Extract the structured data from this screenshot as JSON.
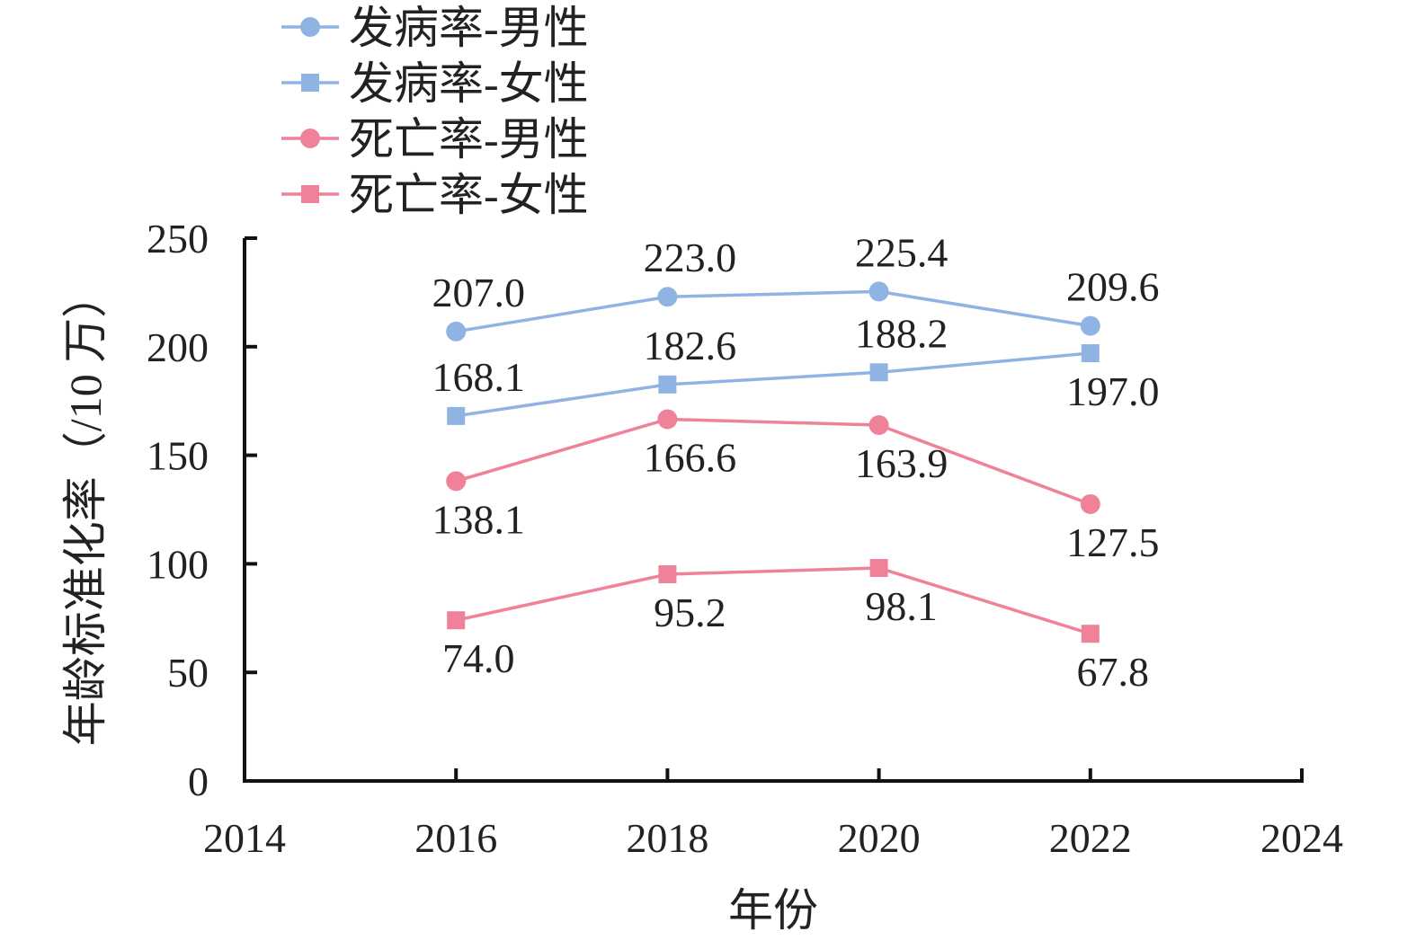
{
  "chart_data": {
    "type": "line",
    "xlabel": "年份",
    "ylabel": "年龄标准化率（/10 万）",
    "xlim": [
      2014,
      2024
    ],
    "ylim": [
      0,
      250
    ],
    "xticks": [
      "2014",
      "2016",
      "2018",
      "2020",
      "2022",
      "2024"
    ],
    "yticks": [
      "0",
      "50",
      "100",
      "150",
      "200",
      "250"
    ],
    "x": [
      2016,
      2018,
      2020,
      2022
    ],
    "grid": false,
    "legend": "top-left",
    "series": [
      {
        "name": "发病率-男性",
        "marker": "circle",
        "color": "#8fb4e3",
        "values": [
          207.0,
          223.0,
          225.4,
          209.6
        ],
        "labels": [
          "207.0",
          "223.0",
          "225.4",
          "209.6"
        ],
        "label_position": [
          "above",
          "above",
          "above",
          "above"
        ]
      },
      {
        "name": "发病率-女性",
        "marker": "square",
        "color": "#8fb4e3",
        "values": [
          168.1,
          182.6,
          188.2,
          197.0
        ],
        "labels": [
          "168.1",
          "182.6",
          "188.2",
          "197.0"
        ],
        "label_position": [
          "above",
          "above",
          "above",
          "below"
        ]
      },
      {
        "name": "死亡率-男性",
        "marker": "circle",
        "color": "#ef8199",
        "values": [
          138.1,
          166.6,
          163.9,
          127.5
        ],
        "labels": [
          "138.1",
          "166.6",
          "163.9",
          "127.5"
        ],
        "label_position": [
          "below",
          "below",
          "below",
          "below"
        ]
      },
      {
        "name": "死亡率-女性",
        "marker": "square",
        "color": "#ef8199",
        "values": [
          74.0,
          95.2,
          98.1,
          67.8
        ],
        "labels": [
          "74.0",
          "95.2",
          "98.1",
          "67.8"
        ],
        "label_position": [
          "below",
          "below",
          "below",
          "below"
        ]
      }
    ]
  }
}
